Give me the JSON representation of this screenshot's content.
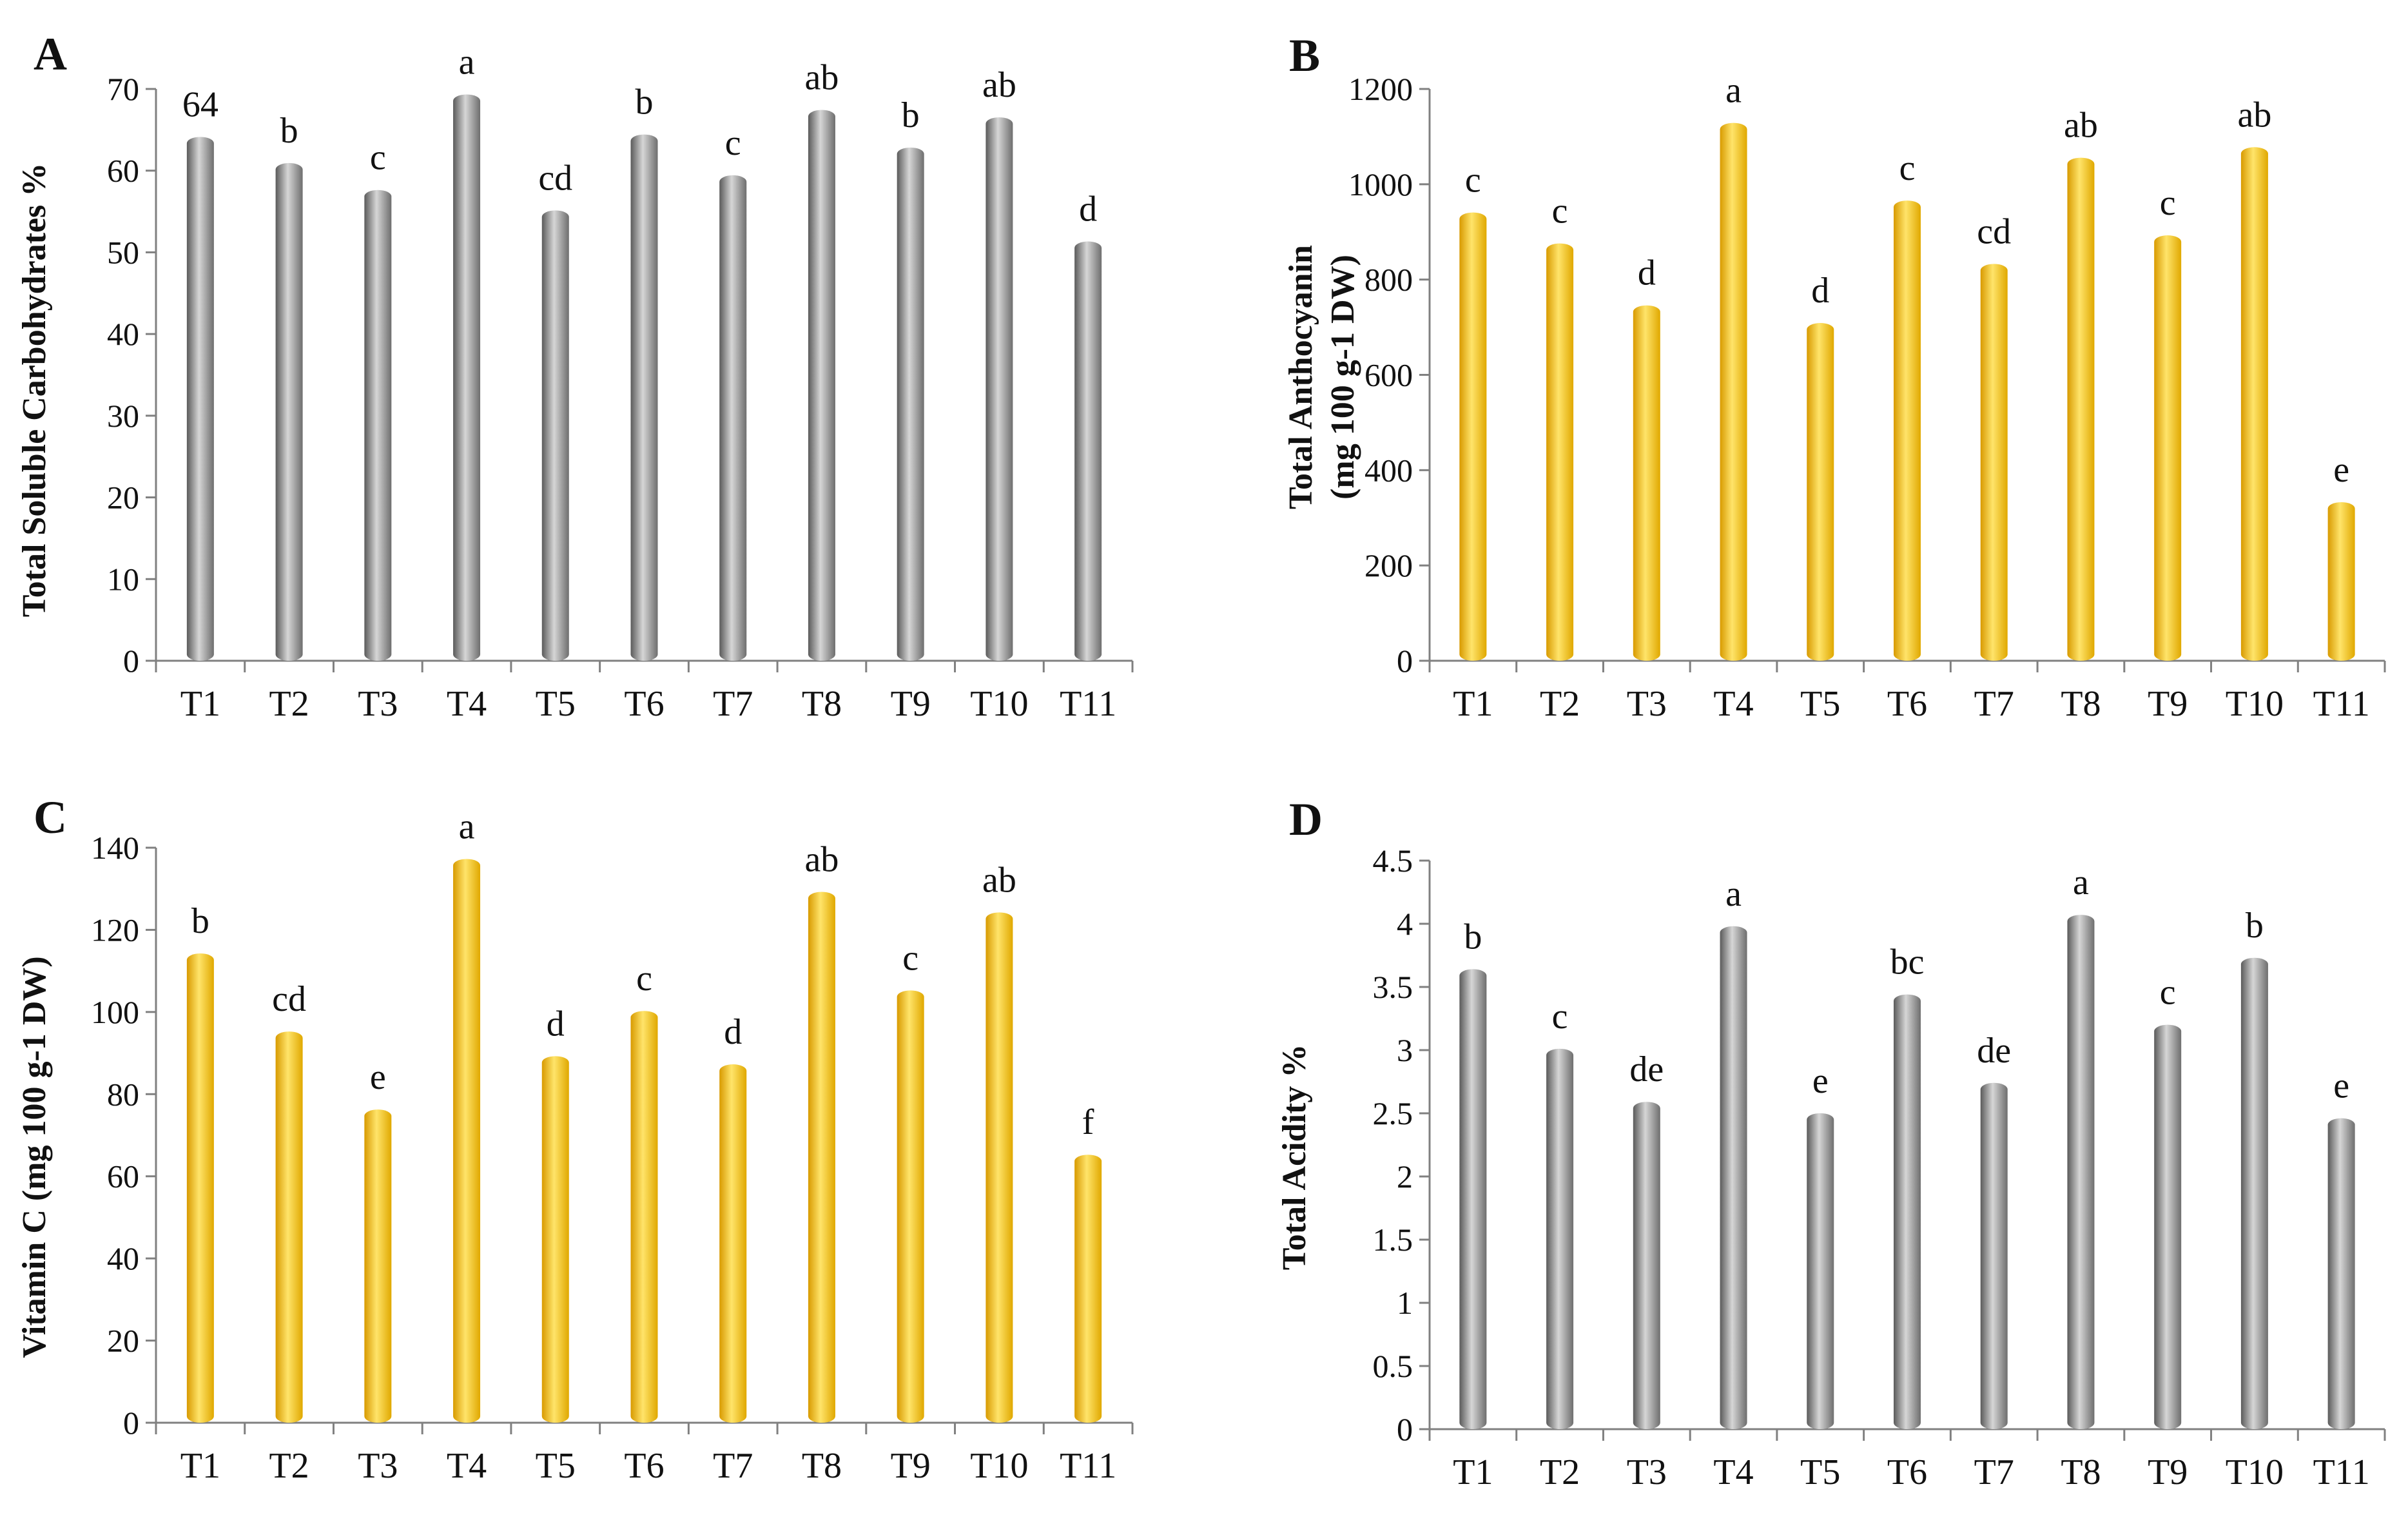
{
  "figure": {
    "colors": {
      "gray_fill": "url(#grayGrad)",
      "gold_fill": "url(#goldGrad)",
      "axis": "#808080"
    },
    "categories": [
      "T1",
      "T2",
      "T3",
      "T4",
      "T5",
      "T6",
      "T7",
      "T8",
      "T9",
      "T10",
      "T11"
    ]
  },
  "chart_data": [
    {
      "type": "bar",
      "panel_label": "A",
      "title": "",
      "xlabel": "",
      "ylabel": "Total Soluble Carbohydrates %",
      "ylim": [
        0,
        70
      ],
      "yticks": [
        0,
        10,
        20,
        30,
        40,
        50,
        60,
        70
      ],
      "ytick_labels": [
        "0",
        "10",
        "20",
        "30",
        "40",
        "50",
        "60",
        "70"
      ],
      "categories": [
        "T1",
        "T2",
        "T3",
        "T4",
        "T5",
        "T6",
        "T7",
        "T8",
        "T9",
        "T10",
        "T11"
      ],
      "values": [
        63.5,
        60.3,
        57.0,
        68.7,
        54.5,
        63.8,
        58.8,
        66.8,
        62.2,
        65.9,
        50.7
      ],
      "annotations": [
        "64",
        "b",
        "c",
        "a",
        "cd",
        "b",
        "c",
        "ab",
        "b",
        "ab",
        "d"
      ],
      "color": "gray",
      "grid": false
    },
    {
      "type": "bar",
      "panel_label": "B",
      "title": "",
      "xlabel": "",
      "ylabel_line1": "Total Anthocyanin",
      "ylabel_line2": "(mg 100 g-1 DW)",
      "ylim": [
        0,
        1200
      ],
      "yticks": [
        0,
        200,
        400,
        600,
        800,
        1000,
        1200
      ],
      "ytick_labels": [
        "0",
        "200",
        "400",
        "600",
        "800",
        "1000",
        "1200"
      ],
      "categories": [
        "T1",
        "T2",
        "T3",
        "T4",
        "T5",
        "T6",
        "T7",
        "T8",
        "T9",
        "T10",
        "T11"
      ],
      "values": [
        930,
        865,
        735,
        1118,
        698,
        955,
        822,
        1045,
        882,
        1067,
        322
      ],
      "annotations": [
        "c",
        "c",
        "d",
        "a",
        "d",
        "c",
        "cd",
        "ab",
        "c",
        "ab",
        "e"
      ],
      "color": "gold",
      "grid": false
    },
    {
      "type": "bar",
      "panel_label": "C",
      "title": "",
      "xlabel": "",
      "ylabel": "Vitamin C (mg 100 g-1 DW)",
      "ylim": [
        0,
        140
      ],
      "yticks": [
        0,
        20,
        40,
        60,
        80,
        100,
        120,
        140
      ],
      "ytick_labels": [
        "0",
        "20",
        "40",
        "60",
        "80",
        "100",
        "120",
        "140"
      ],
      "categories": [
        "T1",
        "T2",
        "T3",
        "T4",
        "T5",
        "T6",
        "T7",
        "T8",
        "T9",
        "T10",
        "T11"
      ],
      "values": [
        113,
        94,
        75,
        136,
        88,
        99,
        86,
        128,
        104,
        123,
        64
      ],
      "annotations": [
        "b",
        "cd",
        "e",
        "a",
        "d",
        "c",
        "d",
        "ab",
        "c",
        "ab",
        "f"
      ],
      "color": "gold",
      "grid": false
    },
    {
      "type": "bar",
      "panel_label": "D",
      "title": "",
      "xlabel": "",
      "ylabel": "Total Acidity %",
      "ylim": [
        0,
        4.5
      ],
      "yticks": [
        0,
        0.5,
        1,
        1.5,
        2,
        2.5,
        3,
        3.5,
        4,
        4.5
      ],
      "ytick_labels": [
        "0",
        "0.5",
        "1",
        "1.5",
        "2",
        "2.5",
        "3",
        "3.5",
        "4",
        "4.5"
      ],
      "categories": [
        "T1",
        "T2",
        "T3",
        "T4",
        "T5",
        "T6",
        "T7",
        "T8",
        "T9",
        "T10",
        "T11"
      ],
      "values": [
        3.6,
        2.97,
        2.55,
        3.94,
        2.46,
        3.4,
        2.7,
        4.03,
        3.16,
        3.69,
        2.42
      ],
      "annotations": [
        "b",
        "c",
        "de",
        "a",
        "e",
        "bc",
        "de",
        "a",
        "c",
        "b",
        "e"
      ],
      "color": "gray",
      "grid": false
    }
  ]
}
